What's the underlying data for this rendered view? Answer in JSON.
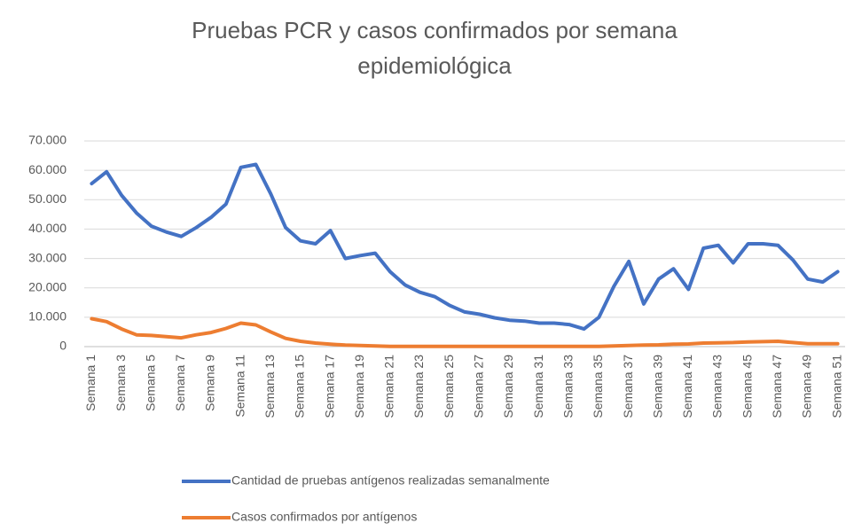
{
  "chart_data": {
    "type": "line",
    "title": "Pruebas PCR y casos confirmados por semana epidemiológica",
    "categories": [
      "Semana 1",
      null,
      "Semana 3",
      null,
      "Semana 5",
      null,
      "Semana 7",
      null,
      "Semana 9",
      null,
      "Semana 11",
      null,
      "Semana 13",
      null,
      "Semana 15",
      null,
      "Semana 17",
      null,
      "Semana 19",
      null,
      "Semana 21",
      null,
      "Semana 23",
      null,
      "Semana 25",
      null,
      "Semana 27",
      null,
      "Semana 29",
      null,
      "Semana 31",
      null,
      "Semana 33",
      null,
      "Semana 35",
      null,
      "Semana 37",
      null,
      "Semana 39",
      null,
      "Semana 41",
      null,
      "Semana 43",
      null,
      "Semana 45",
      null,
      "Semana 47",
      null,
      "Semana 49",
      null,
      "Semana 51"
    ],
    "series": [
      {
        "name": "Cantidad de pruebas antígenos realizadas semanalmente",
        "color": "#4472c4",
        "values": [
          55500,
          59500,
          51500,
          45500,
          41000,
          39000,
          37500,
          40500,
          44000,
          48500,
          61000,
          62000,
          52000,
          40500,
          36000,
          35000,
          39500,
          30000,
          31000,
          31800,
          25500,
          21000,
          18500,
          17000,
          14000,
          11800,
          11000,
          9800,
          9000,
          8700,
          8000,
          8000,
          7500,
          6000,
          10000,
          20500,
          29000,
          14500,
          23000,
          26500,
          19500,
          33500,
          34500,
          28500,
          35000,
          35000,
          34500,
          29500,
          23000,
          22000,
          25500
        ]
      },
      {
        "name": "Casos confirmados por antígenos",
        "color": "#ed7d31",
        "values": [
          9500,
          8500,
          6000,
          4000,
          3800,
          3400,
          3000,
          4000,
          4800,
          6200,
          8000,
          7400,
          5000,
          2800,
          1800,
          1200,
          800,
          500,
          400,
          200,
          100,
          100,
          100,
          100,
          100,
          100,
          100,
          100,
          100,
          100,
          100,
          100,
          100,
          100,
          100,
          200,
          400,
          500,
          600,
          800,
          900,
          1200,
          1300,
          1400,
          1600,
          1700,
          1800,
          1400,
          1000,
          1000,
          1000
        ]
      }
    ],
    "ylim": [
      0,
      70000
    ],
    "yticks": [
      0,
      {
        "value": 10000,
        "label": "10.000"
      },
      {
        "value": 20000,
        "label": "20.000"
      },
      {
        "value": 30000,
        "label": "30.000"
      },
      {
        "value": 40000,
        "label": "40.000"
      },
      {
        "value": 50000,
        "label": "50.000"
      },
      {
        "value": 60000,
        "label": "60.000"
      },
      {
        "value": 70000,
        "label": "70.000"
      }
    ],
    "grid": true,
    "legend": "bottom"
  }
}
